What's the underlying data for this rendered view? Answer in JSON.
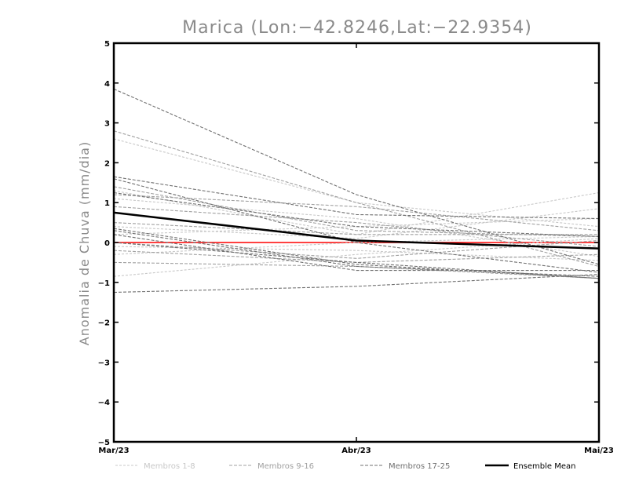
{
  "chart_data": {
    "type": "line",
    "title": "Marica (Lon:−42.8246,Lat:−22.9354)",
    "xlabel": "",
    "ylabel": "Anomalia de Chuva (mm/dia)",
    "categories": [
      "Mar/23",
      "Abr/23",
      "Mai/23"
    ],
    "ylim": [
      -5,
      5
    ],
    "yticks": [
      5,
      4,
      3,
      2,
      1,
      0,
      -1,
      -2,
      -3,
      -4,
      -5
    ],
    "ytick_labels": [
      "5",
      "4",
      "3",
      "2",
      "1",
      "0",
      "−1",
      "−2",
      "−3",
      "−4",
      "−5"
    ],
    "zero_line_color": "#ff0000",
    "groups": [
      {
        "name": "Membros 1-8",
        "color": "#c8c8c8",
        "series": [
          [
            2.6,
            1.0,
            0.4
          ],
          [
            1.3,
            0.2,
            1.25
          ],
          [
            0.4,
            0.1,
            0.85
          ],
          [
            -0.85,
            -0.3,
            0.1
          ],
          [
            -0.3,
            0.0,
            0.15
          ],
          [
            1.1,
            0.6,
            -0.35
          ],
          [
            -0.1,
            -0.2,
            -0.45
          ],
          [
            0.2,
            0.4,
            0.6
          ]
        ]
      },
      {
        "name": "Membros 9-16",
        "color": "#a0a0a0",
        "series": [
          [
            2.8,
            1.0,
            -0.6
          ],
          [
            1.4,
            0.3,
            0.15
          ],
          [
            0.0,
            -0.4,
            0.05
          ],
          [
            -0.5,
            -0.6,
            -0.9
          ],
          [
            1.2,
            0.9,
            0.3
          ],
          [
            -0.2,
            -0.5,
            -0.3
          ],
          [
            0.9,
            0.5,
            -0.1
          ],
          [
            0.5,
            0.2,
            0.2
          ]
        ]
      },
      {
        "name": "Membros 17-25",
        "color": "#707070",
        "series": [
          [
            3.85,
            1.2,
            -0.55
          ],
          [
            1.65,
            0.7,
            0.6
          ],
          [
            1.6,
            0.0,
            -0.75
          ],
          [
            0.35,
            -0.55,
            -0.9
          ],
          [
            0.3,
            -0.6,
            -0.85
          ],
          [
            1.25,
            0.4,
            0.15
          ],
          [
            -1.25,
            -1.1,
            -0.8
          ],
          [
            0.2,
            -0.7,
            -0.7
          ],
          [
            0.0,
            -0.5,
            -0.9
          ]
        ]
      }
    ],
    "ensemble_mean": {
      "name": "Ensemble Mean",
      "color": "#000000",
      "values": [
        0.75,
        0.05,
        -0.15
      ]
    },
    "legend_position": "bottom"
  }
}
